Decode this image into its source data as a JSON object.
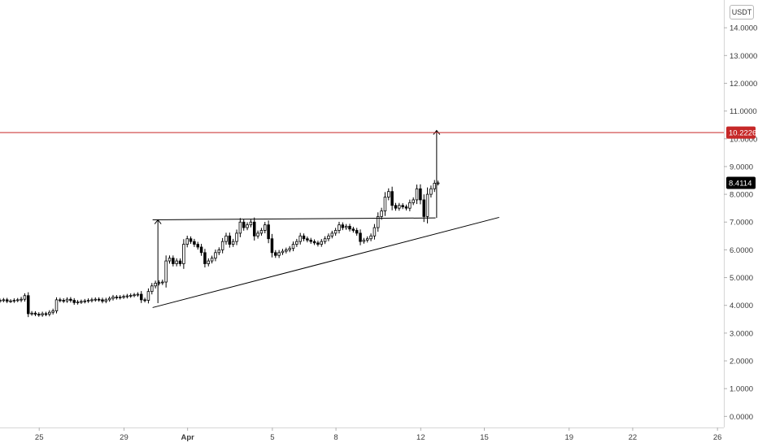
{
  "currency_label": "USDT",
  "colors": {
    "background": "#ffffff",
    "candle": "#000000",
    "candle_up_fill": "#ffffff",
    "candle_down_fill": "#000000",
    "horizontal_line": "#c62828",
    "horizontal_tag": "#c62828",
    "last_price_tag": "#000000",
    "axis_border": "#d6d6d6"
  },
  "chart_data": {
    "type": "candlestick",
    "title": "",
    "xlabel": "",
    "ylabel": "",
    "ylim": [
      -0.4,
      15.0
    ],
    "y_ticks": [
      "0.0000",
      "1.0000",
      "2.0000",
      "3.0000",
      "4.0000",
      "5.0000",
      "6.0000",
      "7.0000",
      "8.0000",
      "9.0000",
      "10.0000",
      "11.0000",
      "12.0000",
      "13.0000",
      "14.0000"
    ],
    "y_tick_values": [
      0,
      1,
      2,
      3,
      4,
      5,
      6,
      7,
      8,
      9,
      10,
      11,
      12,
      13,
      14
    ],
    "x_ticks": [
      {
        "label": "25",
        "day": 0,
        "bold": false
      },
      {
        "label": "29",
        "day": 4,
        "bold": false
      },
      {
        "label": "Apr",
        "day": 7,
        "bold": true
      },
      {
        "label": "5",
        "day": 11,
        "bold": false
      },
      {
        "label": "8",
        "day": 14,
        "bold": false
      },
      {
        "label": "12",
        "day": 18,
        "bold": false
      },
      {
        "label": "15",
        "day": 21,
        "bold": false
      },
      {
        "label": "19",
        "day": 25,
        "bold": false
      },
      {
        "label": "22",
        "day": 28,
        "bold": false
      },
      {
        "label": "26",
        "day": 32,
        "bold": false
      }
    ],
    "xlim_days": [
      -1.85,
      32.3
    ],
    "candles_per_day": 6,
    "closes": [
      4.18,
      4.2,
      4.15,
      4.16,
      4.18,
      4.2,
      4.22,
      4.35,
      3.7,
      3.72,
      3.68,
      3.66,
      3.7,
      3.68,
      3.75,
      3.8,
      4.2,
      4.18,
      4.16,
      4.22,
      4.18,
      4.1,
      4.12,
      4.14,
      4.16,
      4.18,
      4.2,
      4.22,
      4.2,
      4.15,
      4.2,
      4.25,
      4.3,
      4.28,
      4.3,
      4.32,
      4.34,
      4.36,
      4.38,
      4.4,
      4.2,
      4.18,
      4.5,
      4.7,
      4.8,
      4.82,
      4.84,
      5.6,
      5.7,
      5.5,
      5.6,
      5.5,
      6.2,
      6.4,
      6.3,
      6.2,
      6.1,
      5.9,
      5.5,
      5.6,
      5.7,
      5.9,
      6.0,
      6.3,
      6.5,
      6.2,
      6.3,
      6.6,
      7.0,
      6.8,
      6.9,
      7.0,
      6.5,
      6.6,
      6.7,
      6.9,
      6.4,
      5.9,
      5.8,
      5.9,
      5.95,
      6.0,
      6.05,
      6.2,
      6.3,
      6.5,
      6.4,
      6.35,
      6.3,
      6.25,
      6.2,
      6.3,
      6.4,
      6.5,
      6.6,
      6.7,
      6.9,
      6.8,
      6.85,
      6.75,
      6.7,
      6.6,
      6.3,
      6.35,
      6.4,
      6.5,
      6.8,
      7.2,
      7.4,
      7.9,
      8.1,
      7.6,
      7.5,
      7.6,
      7.55,
      7.5,
      7.7,
      7.8,
      8.2,
      7.8,
      7.2,
      8.0,
      8.2,
      8.4,
      8.4114
    ],
    "swing": [
      0.02,
      -0.03,
      0.04,
      -0.01,
      0.05,
      -0.02,
      0.1,
      0.1,
      -0.25,
      0.06,
      -0.04,
      0.05,
      -0.05,
      0.04,
      -0.06,
      0.08,
      0.12,
      -0.05,
      0.06,
      -0.04,
      0.07,
      -0.08,
      0.05,
      -0.03,
      0.04,
      -0.05,
      0.06,
      -0.03,
      0.04,
      -0.06,
      0.05,
      -0.04,
      0.06,
      -0.05,
      0.04,
      -0.03,
      0.05,
      -0.04,
      0.03,
      -0.05,
      -0.22,
      0.06,
      0.2,
      0.18,
      0.12,
      -0.09,
      0.11,
      0.55,
      0.15,
      -0.15,
      0.14,
      -0.12,
      0.5,
      0.2,
      -0.1,
      -0.14,
      -0.12,
      -0.22,
      -0.3,
      0.14,
      0.12,
      0.2,
      0.12,
      0.26,
      0.22,
      -0.24,
      0.14,
      0.28,
      0.34,
      -0.2,
      0.13,
      0.12,
      -0.42,
      0.14,
      0.12,
      0.18,
      -0.4,
      -0.45,
      -0.12,
      0.14,
      0.1,
      0.08,
      0.1,
      0.16,
      0.14,
      0.2,
      -0.12,
      -0.08,
      -0.09,
      -0.07,
      -0.08,
      0.12,
      0.12,
      0.12,
      0.11,
      0.13,
      0.2,
      -0.12,
      0.08,
      -0.11,
      -0.08,
      -0.12,
      -0.3,
      0.08,
      0.1,
      0.12,
      0.28,
      0.36,
      0.22,
      0.48,
      0.22,
      -0.46,
      -0.12,
      0.12,
      -0.09,
      -0.08,
      0.2,
      0.12,
      0.36,
      -0.4,
      -0.55,
      0.75,
      0.22,
      0.22,
      0.08
    ],
    "first_day": -1.85,
    "horizontal_line": {
      "price": 10.2226,
      "label": "10.2226"
    },
    "last_price": {
      "price": 8.4114,
      "label": "8.4114"
    },
    "drawings": {
      "triangle_top": {
        "from": {
          "day": 5.35,
          "price": 7.08
        },
        "to": {
          "day": 18.7,
          "price": 7.15
        }
      },
      "triangle_bottom": {
        "from": {
          "day": 5.35,
          "price": 3.92
        },
        "to": {
          "day": 21.7,
          "price": 7.17
        }
      },
      "measure_arrow_1": {
        "day": 5.6,
        "from_price": 4.08,
        "to_price": 7.08
      },
      "measure_arrow_2": {
        "day": 18.75,
        "from_price": 7.15,
        "to_price": 10.3
      }
    }
  }
}
